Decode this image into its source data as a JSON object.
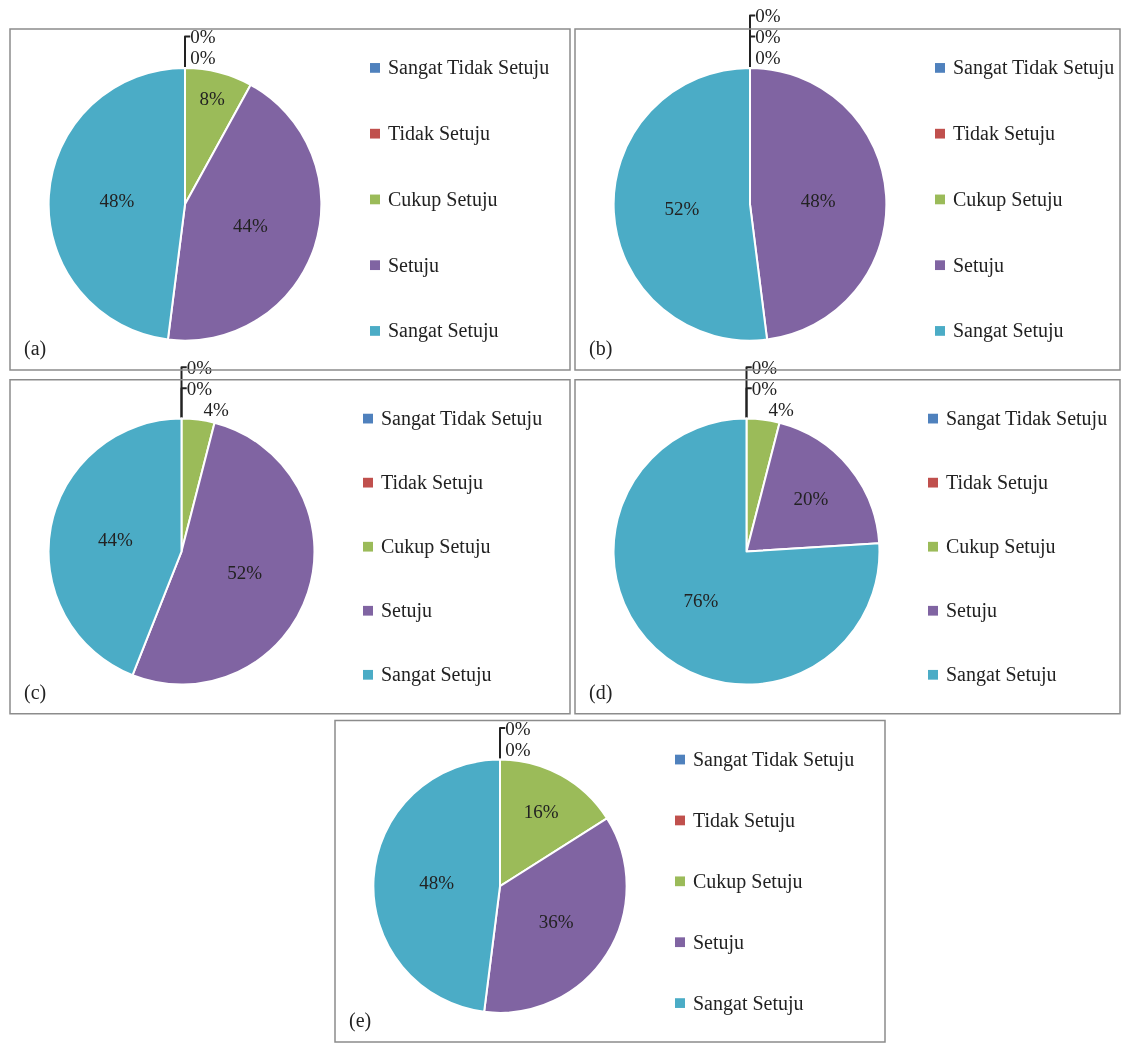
{
  "chart_data": [
    {
      "type": "pie",
      "categories": [
        "Sangat Tidak Setuju",
        "Tidak Setuju",
        "Cukup Setuju",
        "Setuju",
        "Sangat Setuju"
      ],
      "values": [
        0,
        0,
        8,
        44,
        48
      ],
      "value_labels": [
        "0%",
        "0%",
        "8%",
        "44%",
        "48%"
      ],
      "colors": [
        "#4f81bd",
        "#c0504d",
        "#9bbb59",
        "#8064a2",
        "#4bacc6"
      ],
      "legend": "right",
      "annotations": [
        "(a)"
      ]
    },
    {
      "type": "pie",
      "categories": [
        "Sangat Tidak Setuju",
        "Tidak Setuju",
        "Cukup Setuju",
        "Setuju",
        "Sangat Setuju"
      ],
      "values": [
        0,
        0,
        0,
        48,
        52
      ],
      "value_labels": [
        "0%",
        "0%",
        "0%",
        "48%",
        "52%"
      ],
      "colors": [
        "#4f81bd",
        "#c0504d",
        "#9bbb59",
        "#8064a2",
        "#4bacc6"
      ],
      "legend": "right",
      "annotations": [
        "(b)"
      ]
    },
    {
      "type": "pie",
      "categories": [
        "Sangat Tidak Setuju",
        "Tidak Setuju",
        "Cukup Setuju",
        "Setuju",
        "Sangat Setuju"
      ],
      "values": [
        0,
        0,
        4,
        52,
        44
      ],
      "value_labels": [
        "0%",
        "0%",
        "4%",
        "52%",
        "44%"
      ],
      "colors": [
        "#4f81bd",
        "#c0504d",
        "#9bbb59",
        "#8064a2",
        "#4bacc6"
      ],
      "legend": "right",
      "annotations": [
        "(c)"
      ]
    },
    {
      "type": "pie",
      "categories": [
        "Sangat Tidak Setuju",
        "Tidak Setuju",
        "Cukup Setuju",
        "Setuju",
        "Sangat Setuju"
      ],
      "values": [
        0,
        0,
        4,
        20,
        76
      ],
      "value_labels": [
        "0%",
        "0%",
        "4%",
        "20%",
        "76%"
      ],
      "colors": [
        "#4f81bd",
        "#c0504d",
        "#9bbb59",
        "#8064a2",
        "#4bacc6"
      ],
      "legend": "right",
      "annotations": [
        "(d)"
      ]
    },
    {
      "type": "pie",
      "categories": [
        "Sangat Tidak Setuju",
        "Tidak Setuju",
        "Cukup Setuju",
        "Setuju",
        "Sangat Setuju"
      ],
      "values": [
        0,
        0,
        16,
        36,
        48
      ],
      "value_labels": [
        "0%",
        "0%",
        "16%",
        "36%",
        "48%"
      ],
      "colors": [
        "#4f81bd",
        "#c0504d",
        "#9bbb59",
        "#8064a2",
        "#4bacc6"
      ],
      "legend": "right",
      "annotations": [
        "(e)"
      ]
    }
  ]
}
